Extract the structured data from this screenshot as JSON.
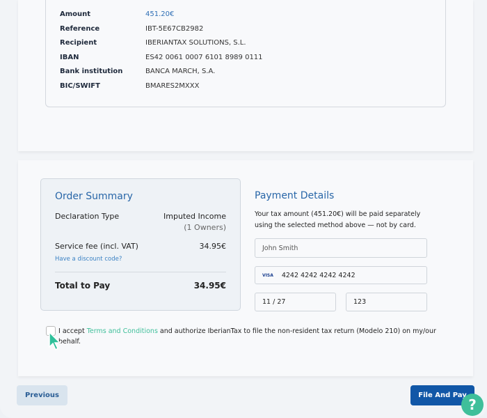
{
  "bank_details": [
    {
      "label": "Amount",
      "value": "451.20€",
      "highlight": true
    },
    {
      "label": "Reference",
      "value": "IBT-5E67CB2982"
    },
    {
      "label": "Recipient",
      "value": "IBERIANTAX SOLUTIONS, S.L."
    },
    {
      "label": "IBAN",
      "value": "ES42 0061 0007 6101 8989 0111"
    },
    {
      "label": "Bank institution",
      "value": "BANCA MARCH, S.A."
    },
    {
      "label": "BIC/SWIFT",
      "value": "BMARES2MXXX"
    }
  ],
  "order_summary": {
    "title": "Order Summary",
    "declaration_label": "Declaration Type",
    "declaration_value": "Imputed Income",
    "owners": "(1 Owners)",
    "fee_label": "Service fee (incl. VAT)",
    "fee_value": "34.95€",
    "discount_link": "Have a discount code?",
    "total_label": "Total to Pay",
    "total_value": "34.95€"
  },
  "payment": {
    "title": "Payment Details",
    "note": "Your tax amount (451.20€) will be paid separately using the selected method above — not by card.",
    "name": "John Smith",
    "card_brand": "VISA",
    "card_number": "4242 4242 4242 4242",
    "expiry": "11 / 27",
    "cvc": "123"
  },
  "consent": {
    "pre": "I accept ",
    "link": "Terms and Conditions",
    "post": " and authorize IberianTax to file the non-resident tax return (Modelo 210) on my/our behalf.",
    "checked": false
  },
  "buttons": {
    "previous": "Previous",
    "file_and_pay": "File And Pay",
    "help": "?"
  },
  "colors": {
    "primary": "#1157a7",
    "accent": "#3fbf9a",
    "heading": "#2866a8"
  }
}
